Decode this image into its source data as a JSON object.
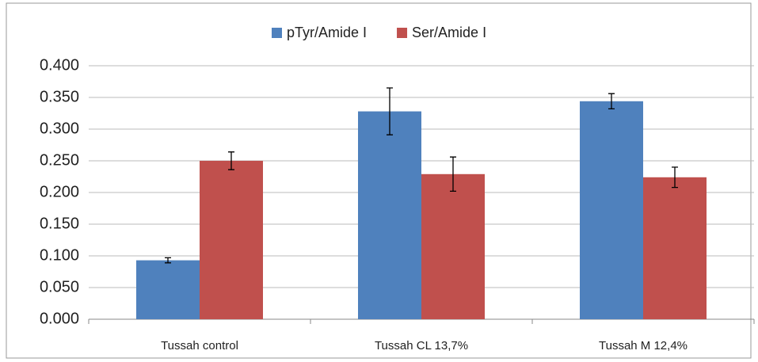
{
  "chart_data": {
    "type": "bar",
    "categories": [
      "Tussah control",
      "Tussah CL 13,7%",
      "Tussah M 12,4%"
    ],
    "series": [
      {
        "name": "pTyr/Amide I",
        "color": "#4f81bd",
        "values": [
          0.093,
          0.328,
          0.344
        ],
        "errors": [
          0.004,
          0.037,
          0.012
        ]
      },
      {
        "name": "Ser/Amide I",
        "color": "#c0504d",
        "values": [
          0.25,
          0.229,
          0.224
        ],
        "errors": [
          0.014,
          0.027,
          0.016
        ]
      }
    ],
    "ylim": [
      0,
      0.4
    ],
    "yticks": [
      {
        "value": 0,
        "label": "0.000"
      },
      {
        "value": 0.05,
        "label": "0.050"
      },
      {
        "value": 0.1,
        "label": "0.100"
      },
      {
        "value": 0.15,
        "label": "0.150"
      },
      {
        "value": 0.2,
        "label": "0.200"
      },
      {
        "value": 0.25,
        "label": "0.250"
      },
      {
        "value": 0.3,
        "label": "0.300"
      },
      {
        "value": 0.35,
        "label": "0.350"
      },
      {
        "value": 0.4,
        "label": "0.400"
      }
    ],
    "grid": true,
    "legend": "top"
  }
}
